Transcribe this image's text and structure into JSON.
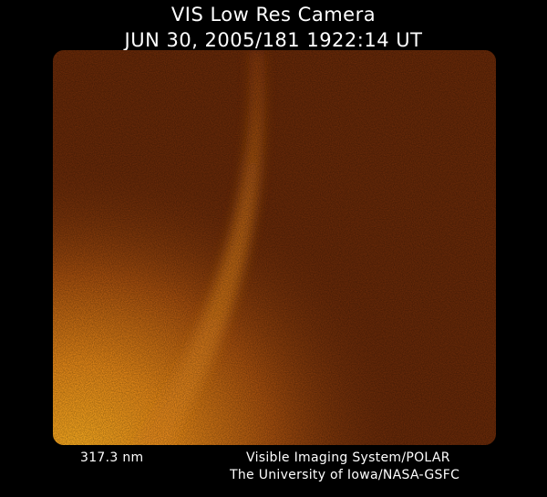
{
  "header": {
    "title": "VIS Low Res Camera",
    "timestamp": "JUN 30, 2005/181 1922:14 UT"
  },
  "image": {
    "description_colors": {
      "background": "#6b2a08",
      "bright": "#f5a21e",
      "arc": "#e0801a"
    }
  },
  "footer": {
    "wavelength": "317.3 nm",
    "instrument": "Visible Imaging System/POLAR",
    "institution": "The University of Iowa/NASA-GSFC"
  }
}
